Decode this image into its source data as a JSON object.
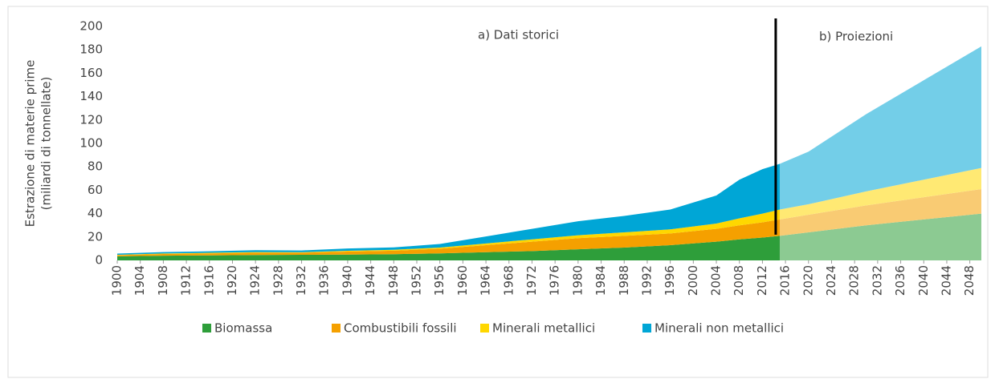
{
  "chart_data": {
    "type": "stacked_area",
    "y_label": [
      "Estrazione di materie prime",
      "(miliardi di tonnellate)"
    ],
    "annotations": [
      "a) Dati storici",
      "b) Proiezioni"
    ],
    "projection_start": 2015,
    "x": [
      1900,
      1908,
      1916,
      1924,
      1932,
      1940,
      1948,
      1956,
      1964,
      1972,
      1980,
      1988,
      1996,
      2004,
      2008,
      2012,
      2015,
      2020,
      2030,
      2040,
      2050
    ],
    "series": [
      {
        "name": "Biomassa",
        "color": "#2e9e3a",
        "values": [
          3.5,
          4,
          4.3,
          4.6,
          4.8,
          5,
          5.3,
          6,
          7,
          8,
          9.5,
          11,
          13,
          16,
          18,
          19.5,
          21,
          24,
          30,
          35,
          40
        ]
      },
      {
        "name": "Combustibili fossili",
        "color": "#f5a000",
        "values": [
          1,
          1.5,
          1.7,
          2,
          1.8,
          2.5,
          3,
          4,
          6,
          8,
          9.5,
          10,
          10,
          11,
          12,
          13,
          14,
          15,
          17,
          19,
          21
        ]
      },
      {
        "name": "Minerali metallici",
        "color": "#ffd700",
        "values": [
          0.3,
          0.4,
          0.5,
          0.5,
          0.4,
          0.7,
          0.8,
          1,
          1.5,
          2,
          2.5,
          3,
          3.5,
          4.5,
          6,
          7.5,
          8.5,
          9,
          12,
          15,
          18
        ]
      },
      {
        "name": "Minerali non metallici",
        "color": "#00a6d6",
        "values": [
          1,
          1.2,
          1.3,
          1.6,
          1.5,
          2,
          2,
          3,
          6,
          9,
          12,
          14,
          17,
          24,
          33,
          38,
          39,
          45,
          66,
          85,
          104
        ]
      }
    ],
    "xlim": [
      1900,
      2050
    ],
    "xticks": [
      1900,
      1904,
      1908,
      1912,
      1916,
      1920,
      1924,
      1928,
      1932,
      1936,
      1940,
      1944,
      1948,
      1952,
      1956,
      1960,
      1964,
      1968,
      1972,
      1976,
      1980,
      1984,
      1988,
      1992,
      1996,
      2000,
      2004,
      2008,
      2012,
      2016,
      2020,
      2024,
      2028,
      2032,
      2036,
      2040,
      2044,
      2048
    ],
    "ylim": [
      0,
      200
    ],
    "yticks": [
      0,
      20,
      40,
      60,
      80,
      100,
      120,
      140,
      160,
      180,
      200
    ]
  }
}
